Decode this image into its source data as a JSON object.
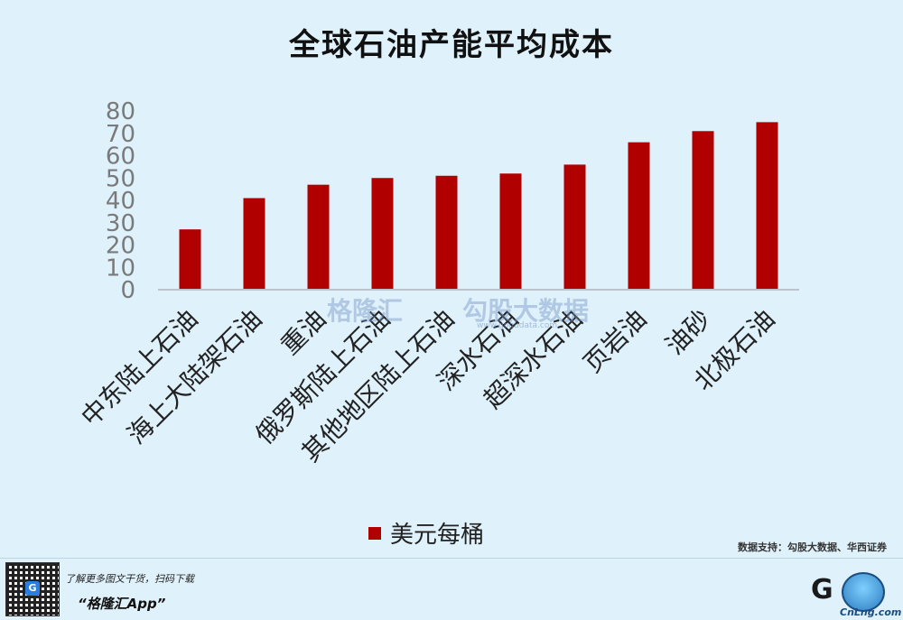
{
  "chart_data": {
    "type": "bar",
    "title": "全球石油产能平均成本",
    "categories": [
      "中东陆上石油",
      "海上大陆架石油",
      "重油",
      "俄罗斯陆上石油",
      "其他地区陆上石油",
      "深水石油",
      "超深水石油",
      "页岩油",
      "油砂",
      "北极石油"
    ],
    "series": [
      {
        "name": "美元每桶",
        "values": [
          27,
          41,
          47,
          50,
          51,
          52,
          56,
          66,
          71,
          75
        ]
      }
    ],
    "ylim": [
      0,
      80
    ],
    "yticks": [
      "0",
      "10",
      "20",
      "30",
      "40",
      "50",
      "60",
      "70",
      "80"
    ],
    "grid": false,
    "legend_position": "bottom",
    "bar_color": "#b00000"
  },
  "watermark": {
    "left_text": "格隆汇",
    "right_text": "勾股大数据",
    "right_url": "www.gogudata.com"
  },
  "source": "数据支持：勾股大数据、华西证券",
  "footer": {
    "promo_line": "了解更多图文干货，扫码下载",
    "app_name": "“格隆汇App”",
    "qr_badge": "G",
    "logo_letter": "G",
    "logo_site": "CnLng.com"
  }
}
